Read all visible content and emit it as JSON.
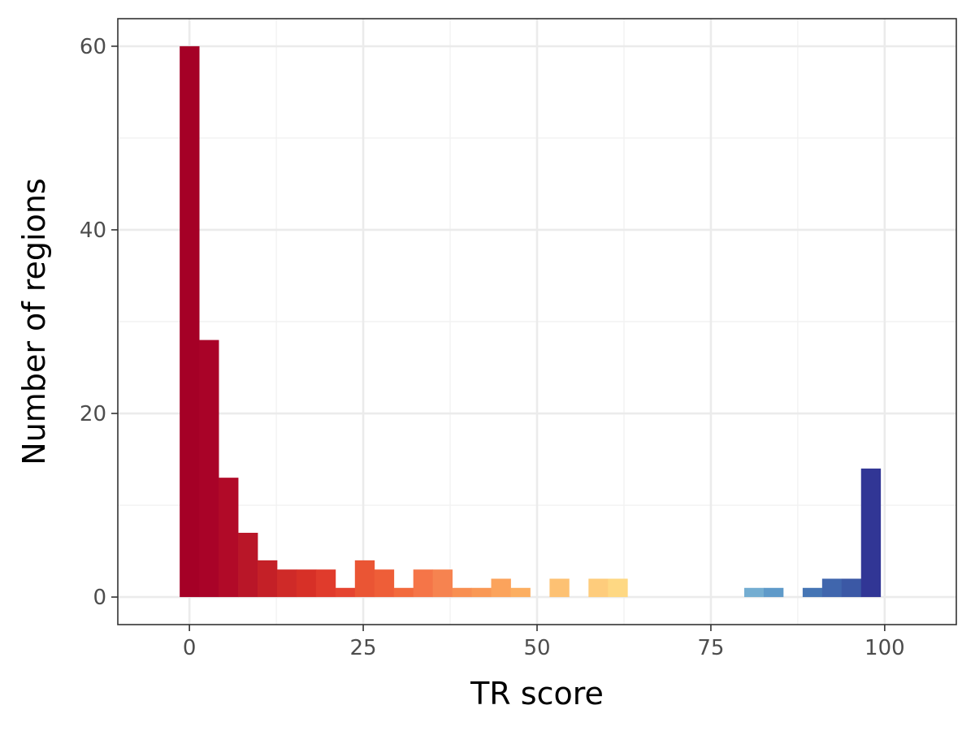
{
  "chart_data": {
    "type": "bar",
    "subtype": "histogram",
    "title": "",
    "xlabel": "TR score",
    "ylabel": "Number of regions",
    "xlim": [
      -10.3,
      110.3
    ],
    "ylim": [
      -3,
      63
    ],
    "x_ticks": [
      0,
      25,
      50,
      75,
      100
    ],
    "y_ticks": [
      0,
      20,
      40,
      60
    ],
    "bin_width": 2.8,
    "grid": true,
    "legend": "none",
    "colors": {
      "panel_border": "#333333",
      "grid_major": "#ebebeb",
      "grid_minor": "#f2f2f2",
      "background": "#ffffff"
    },
    "bins": [
      {
        "x": 0.0,
        "count": 60,
        "color": "#a50026"
      },
      {
        "x": 2.8,
        "count": 28,
        "color": "#a90328"
      },
      {
        "x": 5.6,
        "count": 13,
        "color": "#b10a28"
      },
      {
        "x": 8.4,
        "count": 7,
        "color": "#b91628"
      },
      {
        "x": 11.2,
        "count": 4,
        "color": "#c42027"
      },
      {
        "x": 14.0,
        "count": 3,
        "color": "#cf2a28"
      },
      {
        "x": 16.8,
        "count": 3,
        "color": "#d73027"
      },
      {
        "x": 19.6,
        "count": 3,
        "color": "#e03b2c"
      },
      {
        "x": 22.4,
        "count": 1,
        "color": "#e54430"
      },
      {
        "x": 25.2,
        "count": 4,
        "color": "#ea5534"
      },
      {
        "x": 28.0,
        "count": 3,
        "color": "#ee5e38"
      },
      {
        "x": 30.8,
        "count": 1,
        "color": "#f26a3d"
      },
      {
        "x": 33.6,
        "count": 3,
        "color": "#f57548"
      },
      {
        "x": 36.4,
        "count": 3,
        "color": "#f68350"
      },
      {
        "x": 39.2,
        "count": 1,
        "color": "#f88f52"
      },
      {
        "x": 42.0,
        "count": 1,
        "color": "#f99855"
      },
      {
        "x": 44.8,
        "count": 2,
        "color": "#fba35c"
      },
      {
        "x": 47.6,
        "count": 1,
        "color": "#fcae61"
      },
      {
        "x": 50.4,
        "count": 0,
        "color": "#fdb869"
      },
      {
        "x": 53.2,
        "count": 2,
        "color": "#fdc173"
      },
      {
        "x": 56.0,
        "count": 0,
        "color": "#fec87a"
      },
      {
        "x": 58.8,
        "count": 2,
        "color": "#fecc7c"
      },
      {
        "x": 61.6,
        "count": 2,
        "color": "#fed883"
      },
      {
        "x": 64.4,
        "count": 0,
        "color": "#ffffbf"
      },
      {
        "x": 67.2,
        "count": 0,
        "color": "#ffffbf"
      },
      {
        "x": 70.0,
        "count": 0,
        "color": "#ffffbf"
      },
      {
        "x": 72.8,
        "count": 0,
        "color": "#ffffbf"
      },
      {
        "x": 75.6,
        "count": 0,
        "color": "#ffffbf"
      },
      {
        "x": 78.4,
        "count": 0,
        "color": "#ffffbf"
      },
      {
        "x": 81.2,
        "count": 1,
        "color": "#74add1"
      },
      {
        "x": 84.0,
        "count": 1,
        "color": "#5f9ac9"
      },
      {
        "x": 86.8,
        "count": 0,
        "color": "#4f83bc"
      },
      {
        "x": 89.6,
        "count": 1,
        "color": "#4575b4"
      },
      {
        "x": 92.4,
        "count": 2,
        "color": "#4066ad"
      },
      {
        "x": 95.2,
        "count": 2,
        "color": "#3b58a5"
      },
      {
        "x": 98.0,
        "count": 14,
        "color": "#313695"
      }
    ]
  }
}
